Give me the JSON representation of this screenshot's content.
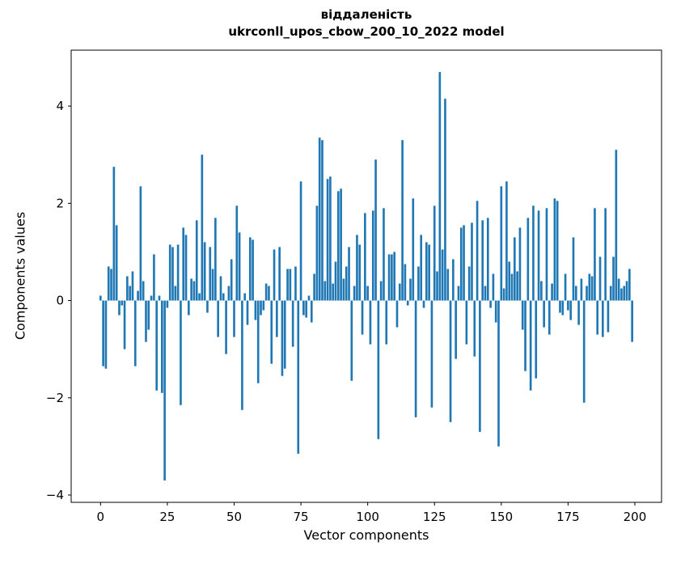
{
  "chart_data": {
    "type": "bar",
    "title_line1": "віддаленість",
    "title_line2": "ukrconll_upos_cbow_200_10_2022 model",
    "xlabel": "Vector components",
    "ylabel": "Components values",
    "bar_color": "#1f77b4",
    "axis_color": "#000000",
    "xlim": [
      -11,
      210
    ],
    "ylim": [
      -4.15,
      5.15
    ],
    "xticks": [
      0,
      25,
      50,
      75,
      100,
      125,
      150,
      175,
      200
    ],
    "yticks": [
      -4,
      -2,
      0,
      2,
      4
    ],
    "x_start": 0,
    "values": [
      0.1,
      -1.35,
      -1.4,
      0.7,
      0.65,
      2.75,
      1.55,
      -0.3,
      -0.1,
      -1.0,
      0.5,
      0.3,
      0.6,
      -1.35,
      0.2,
      2.35,
      0.4,
      -0.85,
      -0.6,
      0.1,
      0.95,
      -1.85,
      0.1,
      -1.9,
      -3.7,
      -0.15,
      1.15,
      1.1,
      0.3,
      1.15,
      -2.15,
      1.5,
      1.35,
      -0.3,
      0.45,
      0.4,
      1.65,
      0.15,
      3.0,
      1.2,
      -0.25,
      1.1,
      0.65,
      1.7,
      -0.75,
      0.5,
      0.15,
      -1.1,
      0.3,
      0.85,
      -0.75,
      1.95,
      1.4,
      -2.25,
      0.15,
      -0.5,
      1.3,
      1.25,
      -0.4,
      -1.7,
      -0.3,
      -0.2,
      0.35,
      0.3,
      -1.3,
      1.05,
      -0.75,
      1.1,
      -1.55,
      -1.4,
      0.65,
      0.65,
      -0.95,
      0.7,
      -3.15,
      2.45,
      -0.3,
      -0.35,
      0.1,
      -0.45,
      0.55,
      1.95,
      3.35,
      3.3,
      0.4,
      2.5,
      2.55,
      0.35,
      0.8,
      2.25,
      2.3,
      0.45,
      0.7,
      1.1,
      -1.65,
      0.3,
      1.35,
      1.15,
      -0.7,
      1.8,
      0.3,
      -0.9,
      1.85,
      2.9,
      -2.85,
      0.4,
      1.9,
      -0.9,
      0.95,
      0.95,
      1.0,
      -0.55,
      0.35,
      3.3,
      0.75,
      -0.1,
      0.45,
      2.1,
      -2.4,
      0.7,
      1.35,
      -0.15,
      1.2,
      1.15,
      -2.2,
      1.95,
      0.6,
      4.7,
      1.05,
      4.15,
      0.65,
      -2.5,
      0.85,
      -1.2,
      0.3,
      1.5,
      1.55,
      -0.9,
      0.7,
      1.6,
      -1.15,
      2.05,
      -2.7,
      1.65,
      0.3,
      1.7,
      -0.15,
      0.55,
      -0.45,
      -3.0,
      2.35,
      0.25,
      2.45,
      0.8,
      0.55,
      1.3,
      0.6,
      1.5,
      -0.6,
      -1.45,
      1.7,
      -1.85,
      1.95,
      -1.6,
      1.85,
      0.4,
      -0.55,
      1.9,
      -0.7,
      0.35,
      2.1,
      2.05,
      -0.25,
      -0.3,
      0.55,
      -0.2,
      -0.4,
      1.3,
      0.3,
      -0.5,
      0.45,
      -2.1,
      0.3,
      0.55,
      0.5,
      1.9,
      -0.7,
      0.9,
      -0.75,
      1.9,
      -0.65,
      0.3,
      0.9,
      3.1,
      0.45,
      0.25,
      0.3,
      0.4,
      0.65,
      -0.85
    ]
  }
}
